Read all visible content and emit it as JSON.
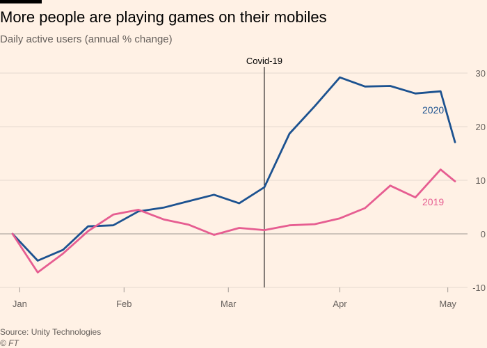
{
  "title": "More people are playing games on their mobiles",
  "subtitle": "Daily active users (annual % change)",
  "source": "Source: Unity Technologies",
  "copyright": "© FT",
  "chart_data": {
    "type": "line",
    "title": "More people are playing games on their mobiles",
    "ylabel": "Daily active users (annual % change)",
    "xlabel": "",
    "x": [
      "2020-01-01",
      "2020-01-08",
      "2020-01-15",
      "2020-01-22",
      "2020-01-29",
      "2020-02-05",
      "2020-02-12",
      "2020-02-19",
      "2020-02-26",
      "2020-03-04",
      "2020-03-11",
      "2020-03-18",
      "2020-03-25",
      "2020-04-01",
      "2020-04-08",
      "2020-04-15",
      "2020-04-22",
      "2020-04-29",
      "2020-05-03"
    ],
    "x_tick_labels": [
      "Jan",
      "Feb",
      "Mar",
      "Apr",
      "May"
    ],
    "x_ticks": [
      "2020-01-03",
      "2020-02-01",
      "2020-03-01",
      "2020-04-01",
      "2020-05-01"
    ],
    "y_ticks": [
      -10,
      0,
      10,
      20,
      30
    ],
    "ylim": [
      -10,
      30
    ],
    "grid": true,
    "series": [
      {
        "name": "2020",
        "color": "#1c5290",
        "values": [
          0,
          -5,
          -3,
          1.4,
          1.6,
          4.2,
          4.9,
          6.1,
          7.3,
          5.7,
          8.7,
          18.7,
          23.8,
          29.2,
          27.5,
          27.6,
          26.2,
          26.6,
          17.1
        ]
      },
      {
        "name": "2019",
        "color": "#e65d91",
        "values": [
          0,
          -7.2,
          -3.7,
          0.5,
          3.6,
          4.5,
          2.7,
          1.7,
          -0.2,
          1.1,
          0.7,
          1.6,
          1.8,
          2.9,
          4.8,
          9.0,
          6.8,
          12.0,
          9.8
        ]
      }
    ],
    "annotations": [
      {
        "label": "Covid-19",
        "x": "2020-03-11"
      }
    ]
  }
}
